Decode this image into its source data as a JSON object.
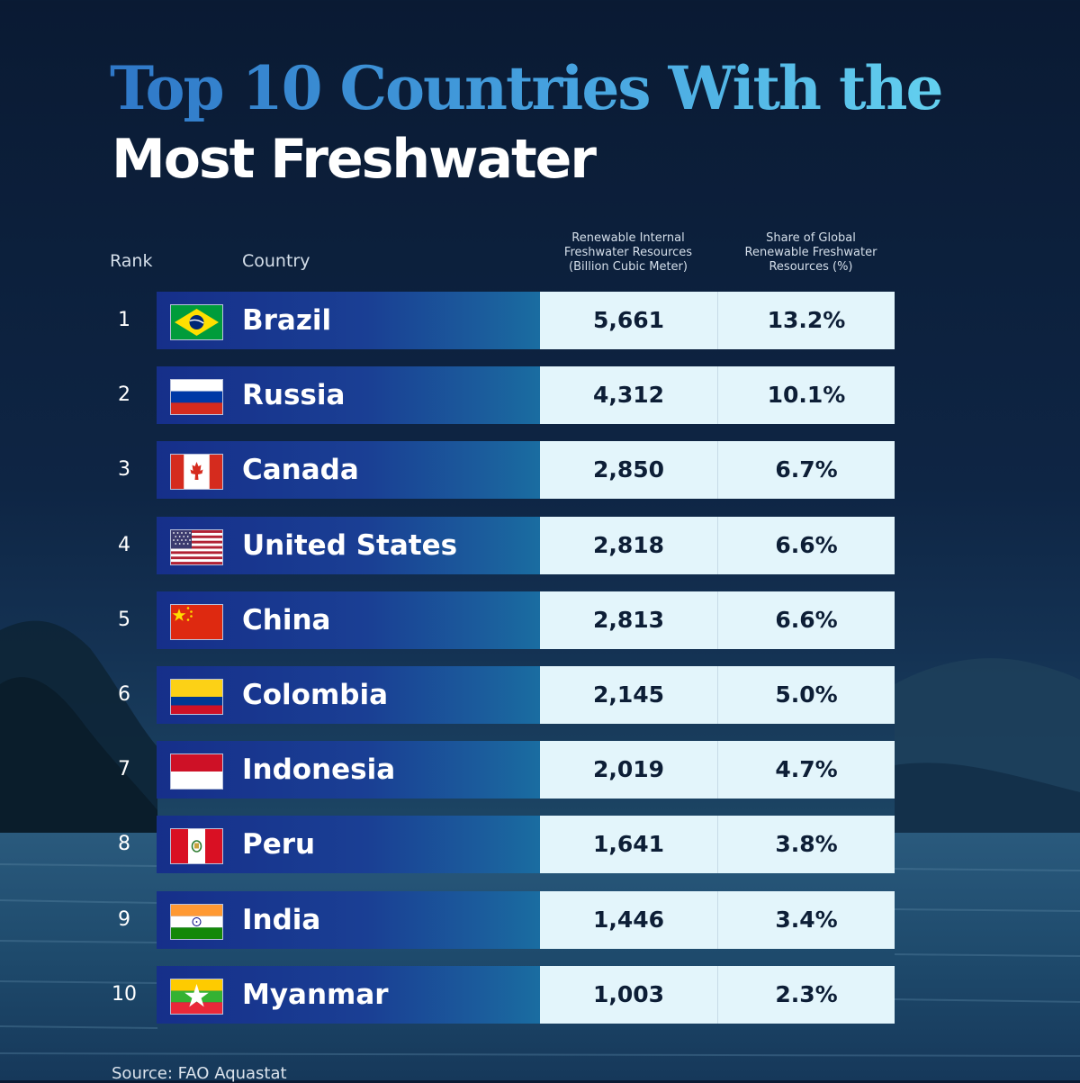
{
  "title_line1": "Top 10 Countries With the",
  "title_line2": "Most Freshwater",
  "headers": {
    "rank": "Rank",
    "country": "Country",
    "resources": [
      "Renewable Internal",
      "Freshwater Resources",
      "(Billion Cubic Meter)"
    ],
    "share": [
      "Share of Global",
      "Renewable Freshwater",
      "Resources (%)"
    ]
  },
  "source": "Source: FAO Aquastat",
  "chart_data": {
    "type": "table",
    "columns": [
      "Rank",
      "Country",
      "Renewable Internal Freshwater Resources (Billion Cubic Meter)",
      "Share of Global Renewable Freshwater Resources (%)"
    ],
    "rows": [
      {
        "rank": "1",
        "country": "Brazil",
        "flag": "brazil-flag-icon",
        "resources": "5,661",
        "share": "13.2%"
      },
      {
        "rank": "2",
        "country": "Russia",
        "flag": "russia-flag-icon",
        "resources": "4,312",
        "share": "10.1%"
      },
      {
        "rank": "3",
        "country": "Canada",
        "flag": "canada-flag-icon",
        "resources": "2,850",
        "share": "6.7%"
      },
      {
        "rank": "4",
        "country": "United States",
        "flag": "usa-flag-icon",
        "resources": "2,818",
        "share": "6.6%"
      },
      {
        "rank": "5",
        "country": "China",
        "flag": "china-flag-icon",
        "resources": "2,813",
        "share": "6.6%"
      },
      {
        "rank": "6",
        "country": "Colombia",
        "flag": "colombia-flag-icon",
        "resources": "2,145",
        "share": "5.0%"
      },
      {
        "rank": "7",
        "country": "Indonesia",
        "flag": "indonesia-flag-icon",
        "resources": "2,019",
        "share": "4.7%"
      },
      {
        "rank": "8",
        "country": "Peru",
        "flag": "peru-flag-icon",
        "resources": "1,641",
        "share": "3.8%"
      },
      {
        "rank": "9",
        "country": "India",
        "flag": "india-flag-icon",
        "resources": "1,446",
        "share": "3.4%"
      },
      {
        "rank": "10",
        "country": "Myanmar",
        "flag": "myanmar-flag-icon",
        "resources": "1,003",
        "share": "2.3%"
      }
    ]
  }
}
